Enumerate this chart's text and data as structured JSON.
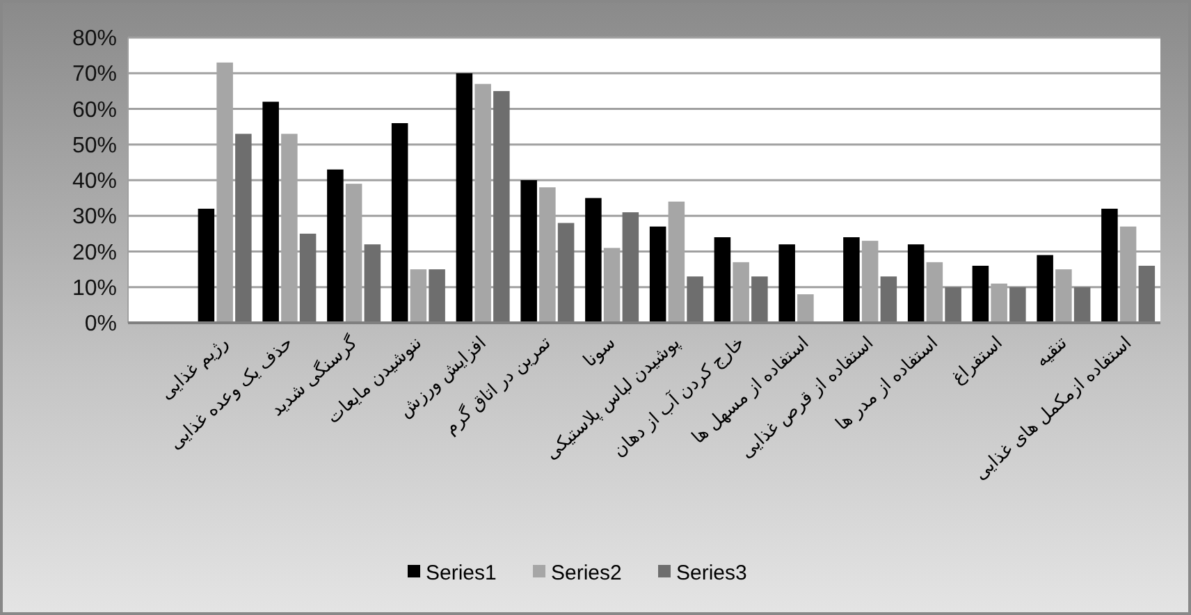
{
  "chart_data": {
    "type": "bar",
    "categories": [
      null,
      "رژیم غذایی",
      "حذف یک وعده غذایی",
      "گرسنگی شدید",
      "ننوشیدن مایعات",
      "افزایش ورزش",
      "تمرین در اتاق گرم",
      "سونا",
      "پوشیدن لباس پلاستیکی",
      "خارج کردن آب از دهان",
      "استفاده از مسهل ها",
      "استفاده از قرص غذایی",
      "استفاده از مدر ها",
      "استفراغ",
      "تنقیه",
      "استفاده ازمکمل های غذایی"
    ],
    "series": [
      {
        "name": "Series1",
        "color": "#000000",
        "values": [
          null,
          32,
          62,
          43,
          56,
          70,
          40,
          35,
          27,
          24,
          22,
          24,
          22,
          16,
          19,
          32
        ]
      },
      {
        "name": "Series2",
        "color": "#a6a6a6",
        "values": [
          null,
          73,
          53,
          39,
          15,
          67,
          38,
          21,
          34,
          17,
          8,
          23,
          17,
          11,
          15,
          27
        ]
      },
      {
        "name": "Series3",
        "color": "#6e6e6e",
        "values": [
          null,
          53,
          25,
          22,
          15,
          65,
          28,
          31,
          13,
          13,
          null,
          13,
          10,
          10,
          10,
          16
        ]
      }
    ],
    "ylim": [
      0,
      80
    ],
    "yticks": [
      {
        "value": 0,
        "label": "0%"
      },
      {
        "value": 10,
        "label": "10%"
      },
      {
        "value": 20,
        "label": "20%"
      },
      {
        "value": 30,
        "label": "30%"
      },
      {
        "value": 40,
        "label": "40%"
      },
      {
        "value": 50,
        "label": "50%"
      },
      {
        "value": 60,
        "label": "60%"
      },
      {
        "value": 70,
        "label": "70%"
      },
      {
        "value": 80,
        "label": "80%"
      }
    ],
    "grid": "y",
    "legend": "bottom"
  }
}
